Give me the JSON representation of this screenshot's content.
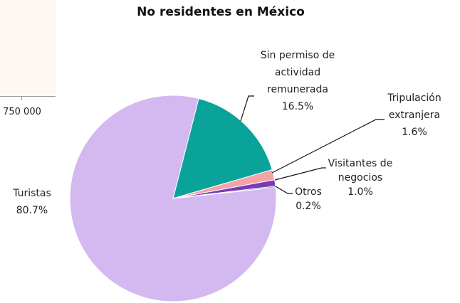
{
  "prev_chart": {
    "tick_label": "750 000"
  },
  "chart_data": {
    "type": "pie",
    "title": "No residentes en México",
    "slices": [
      {
        "label": "Sin permiso de actividad remunerada",
        "label_lines": [
          "Sin permiso de",
          "actividad",
          "remunerada"
        ],
        "value": 16.5,
        "value_label": "16.5%",
        "color": "#0aa39a"
      },
      {
        "label": "Tripulación extranjera",
        "label_lines": [
          "Tripulación",
          "extranjera"
        ],
        "value": 1.6,
        "value_label": "1.6%",
        "color": "#f4a3a6"
      },
      {
        "label": "Visitantes de negocios",
        "label_lines": [
          "Visitantes de",
          "negocios"
        ],
        "value": 1.0,
        "value_label": "1.0%",
        "color": "#7a3ab8"
      },
      {
        "label": "Otros",
        "label_lines": [
          "Otros"
        ],
        "value": 0.2,
        "value_label": "0.2%",
        "color": "#2a8a86"
      },
      {
        "label": "Turistas",
        "label_lines": [
          "Turistas"
        ],
        "value": 80.7,
        "value_label": "80.7%",
        "color": "#d4b8f0"
      }
    ]
  }
}
